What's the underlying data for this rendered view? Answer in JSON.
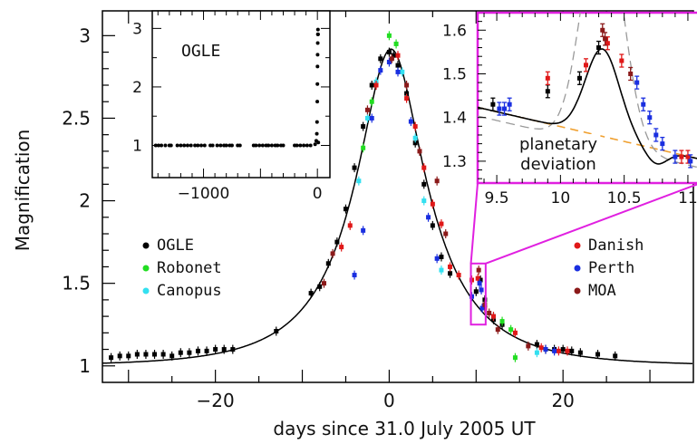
{
  "chart_data": [
    {
      "id": "main",
      "type": "scatter",
      "xlabel": "days since 31.0 July 2005 UT",
      "ylabel": "Magnification",
      "xlim": [
        -33,
        35
      ],
      "ylim": [
        0.9,
        3.15
      ],
      "xticks": [
        -20,
        0,
        20
      ],
      "xtick_labels": [
        "−20",
        "0",
        "20"
      ],
      "yticks": [
        1,
        1.5,
        2,
        2.5,
        3
      ],
      "ytick_labels": [
        "1",
        "1.5",
        "2",
        "2.5",
        "3"
      ],
      "legend_left": [
        {
          "name": "OGLE",
          "color": "#000000"
        },
        {
          "name": "Robonet",
          "color": "#22dd22"
        },
        {
          "name": "Canopus",
          "color": "#33e0f0"
        }
      ],
      "legend_right": [
        {
          "name": "Danish",
          "color": "#e01818"
        },
        {
          "name": "Perth",
          "color": "#1a2fe0"
        },
        {
          "name": "MOA",
          "color": "#8b1a1a"
        }
      ],
      "model": {
        "t0": 0.2,
        "u0": 0.359,
        "tE": 11.0,
        "color": "#000000"
      },
      "zoom_box": {
        "x": [
          9.4,
          11.1
        ],
        "y": [
          1.25,
          1.62
        ],
        "color": "#e020e0"
      },
      "series": [
        {
          "name": "OGLE",
          "color": "#000000",
          "points": [
            [
              -32,
              1.05
            ],
            [
              -31,
              1.06
            ],
            [
              -30,
              1.06
            ],
            [
              -29,
              1.07
            ],
            [
              -28,
              1.07
            ],
            [
              -27,
              1.07
            ],
            [
              -26,
              1.07
            ],
            [
              -25,
              1.06
            ],
            [
              -24,
              1.08
            ],
            [
              -23,
              1.08
            ],
            [
              -22,
              1.09
            ],
            [
              -21,
              1.09
            ],
            [
              -20,
              1.1
            ],
            [
              -19,
              1.1
            ],
            [
              -18,
              1.1
            ],
            [
              -13,
              1.21
            ],
            [
              -9,
              1.44
            ],
            [
              -8,
              1.48
            ],
            [
              -7,
              1.62
            ],
            [
              -6,
              1.75
            ],
            [
              -5,
              1.95
            ],
            [
              -4,
              2.2
            ],
            [
              -3,
              2.45
            ],
            [
              -2,
              2.7
            ],
            [
              -1,
              2.86
            ],
            [
              0,
              2.9
            ],
            [
              0.5,
              2.88
            ],
            [
              1,
              2.82
            ],
            [
              2,
              2.65
            ],
            [
              3,
              2.35
            ],
            [
              4,
              2.1
            ],
            [
              5,
              1.85
            ],
            [
              6,
              1.66
            ],
            [
              7,
              1.56
            ],
            [
              10,
              1.45
            ],
            [
              10.5,
              1.52
            ],
            [
              11,
              1.4
            ],
            [
              12,
              1.28
            ],
            [
              13,
              1.25
            ],
            [
              17,
              1.13
            ],
            [
              18,
              1.1
            ],
            [
              19,
              1.1
            ],
            [
              20,
              1.1
            ],
            [
              21,
              1.09
            ],
            [
              22,
              1.08
            ],
            [
              24,
              1.07
            ],
            [
              26,
              1.06
            ]
          ]
        },
        {
          "name": "Robonet",
          "color": "#22dd22",
          "points": [
            [
              -3,
              2.32
            ],
            [
              -2,
              2.6
            ],
            [
              0,
              3.0
            ],
            [
              0.8,
              2.95
            ],
            [
              13,
              1.27
            ],
            [
              14,
              1.22
            ],
            [
              14.5,
              1.05
            ]
          ]
        },
        {
          "name": "Canopus",
          "color": "#33e0f0",
          "points": [
            [
              -3.5,
              2.12
            ],
            [
              -2.5,
              2.5
            ],
            [
              -1.5,
              2.72
            ],
            [
              1.5,
              2.78
            ],
            [
              3,
              2.38
            ],
            [
              4,
              2.0
            ],
            [
              6,
              1.58
            ],
            [
              12,
              1.3
            ],
            [
              17,
              1.08
            ]
          ]
        },
        {
          "name": "Danish",
          "color": "#e01818",
          "points": [
            [
              -5.5,
              1.72
            ],
            [
              -4.5,
              1.85
            ],
            [
              -1.5,
              2.7
            ],
            [
              1,
              2.88
            ],
            [
              2,
              2.62
            ],
            [
              3,
              2.45
            ],
            [
              4,
              2.2
            ],
            [
              5,
              1.98
            ],
            [
              6,
              1.86
            ],
            [
              7,
              1.6
            ],
            [
              8,
              1.55
            ],
            [
              9.5,
              1.52
            ],
            [
              10.2,
              1.53
            ],
            [
              11,
              1.35
            ],
            [
              12,
              1.3
            ],
            [
              14.5,
              1.2
            ],
            [
              17.5,
              1.11
            ],
            [
              19.5,
              1.09
            ],
            [
              20.5,
              1.09
            ]
          ]
        },
        {
          "name": "Perth",
          "color": "#1a2fe0",
          "points": [
            [
              -4,
              1.55
            ],
            [
              -3,
              1.82
            ],
            [
              -2,
              2.5
            ],
            [
              -1,
              2.79
            ],
            [
              0,
              2.84
            ],
            [
              1,
              2.78
            ],
            [
              2.5,
              2.48
            ],
            [
              4.5,
              1.9
            ],
            [
              5.5,
              1.65
            ],
            [
              9.5,
              1.42
            ],
            [
              10.4,
              1.5
            ],
            [
              10.6,
              1.46
            ],
            [
              10.7,
              1.35
            ],
            [
              18,
              1.1
            ],
            [
              19,
              1.09
            ]
          ]
        },
        {
          "name": "MOA",
          "color": "#8b1a1a",
          "points": [
            [
              -7.5,
              1.5
            ],
            [
              -6.5,
              1.68
            ],
            [
              -2.5,
              2.55
            ],
            [
              0.3,
              2.86
            ],
            [
              2,
              2.7
            ],
            [
              3.5,
              2.3
            ],
            [
              5.5,
              2.12
            ],
            [
              6.5,
              1.8
            ],
            [
              10.3,
              1.58
            ],
            [
              11,
              1.37
            ],
            [
              11.5,
              1.32
            ],
            [
              12.5,
              1.22
            ],
            [
              16,
              1.12
            ]
          ]
        }
      ]
    },
    {
      "id": "inset_ogle",
      "type": "scatter",
      "title": "OGLE",
      "xlim": [
        -1450,
        110
      ],
      "ylim": [
        0.45,
        3.3
      ],
      "xticks": [
        -1000,
        -500,
        0
      ],
      "xtick_labels": [
        "−1000",
        "",
        "0"
      ],
      "yticks": [
        1,
        2,
        3
      ],
      "ytick_labels": [
        "1",
        "2",
        "3"
      ],
      "color": "#000000",
      "points": [
        [
          -1420,
          1.0
        ],
        [
          -1395,
          1.0
        ],
        [
          -1370,
          1.0
        ],
        [
          -1335,
          1.0
        ],
        [
          -1300,
          1.0
        ],
        [
          -1285,
          1.0
        ],
        [
          -1230,
          1.0
        ],
        [
          -1200,
          1.0
        ],
        [
          -1170,
          1.0
        ],
        [
          -1140,
          1.0
        ],
        [
          -1110,
          1.0
        ],
        [
          -1075,
          1.0
        ],
        [
          -1050,
          1.0
        ],
        [
          -1020,
          1.0
        ],
        [
          -990,
          1.0
        ],
        [
          -940,
          1.0
        ],
        [
          -920,
          1.0
        ],
        [
          -880,
          1.0
        ],
        [
          -850,
          1.0
        ],
        [
          -820,
          1.0
        ],
        [
          -800,
          1.0
        ],
        [
          -770,
          1.0
        ],
        [
          -750,
          1.0
        ],
        [
          -700,
          1.0
        ],
        [
          -680,
          1.0
        ],
        [
          -560,
          1.0
        ],
        [
          -540,
          1.0
        ],
        [
          -510,
          1.0
        ],
        [
          -480,
          1.0
        ],
        [
          -450,
          1.0
        ],
        [
          -430,
          1.0
        ],
        [
          -400,
          1.0
        ],
        [
          -370,
          1.0
        ],
        [
          -350,
          1.0
        ],
        [
          -320,
          1.0
        ],
        [
          -300,
          1.0
        ],
        [
          -200,
          1.0
        ],
        [
          -180,
          1.0
        ],
        [
          -150,
          1.0
        ],
        [
          -120,
          1.0
        ],
        [
          -90,
          1.0
        ],
        [
          -60,
          1.0
        ],
        [
          -20,
          1.02
        ],
        [
          -10,
          1.08
        ],
        [
          -5,
          1.2
        ],
        [
          -3,
          1.4
        ],
        [
          -1,
          1.75
        ],
        [
          0,
          2.05
        ],
        [
          1,
          2.35
        ],
        [
          2,
          2.55
        ],
        [
          3,
          2.75
        ],
        [
          4,
          2.9
        ],
        [
          5,
          2.98
        ],
        [
          6,
          2.9
        ],
        [
          8,
          1.05
        ]
      ]
    },
    {
      "id": "inset_deviation",
      "type": "scatter",
      "title": "planetary deviation",
      "xlim": [
        9.35,
        11.1
      ],
      "ylim": [
        1.25,
        1.64
      ],
      "xticks": [
        9.5,
        10,
        10.5,
        11
      ],
      "xtick_labels": [
        "9.5",
        "10",
        "10.5",
        "11"
      ],
      "yticks": [
        1.3,
        1.4,
        1.5,
        1.6
      ],
      "ytick_labels": [
        "1.3",
        "1.4",
        "1.5",
        "1.6"
      ],
      "model_color": "#000000",
      "background_color": "#f0a030",
      "single_planet_color": "#999999",
      "series": [
        {
          "name": "OGLE",
          "color": "#000000",
          "points": [
            [
              9.47,
              1.43
            ],
            [
              9.9,
              1.46
            ],
            [
              10.15,
              1.49
            ],
            [
              10.3,
              1.56
            ]
          ]
        },
        {
          "name": "Danish",
          "color": "#e01818",
          "points": [
            [
              9.9,
              1.49
            ],
            [
              10.2,
              1.52
            ],
            [
              10.37,
              1.57
            ],
            [
              10.48,
              1.53
            ],
            [
              10.95,
              1.31
            ],
            [
              11.0,
              1.31
            ]
          ]
        },
        {
          "name": "Perth",
          "color": "#1a2fe0",
          "points": [
            [
              9.52,
              1.42
            ],
            [
              9.56,
              1.42
            ],
            [
              9.6,
              1.43
            ],
            [
              10.6,
              1.48
            ],
            [
              10.65,
              1.43
            ],
            [
              10.7,
              1.4
            ],
            [
              10.75,
              1.36
            ],
            [
              10.8,
              1.34
            ],
            [
              10.9,
              1.31
            ],
            [
              11.02,
              1.3
            ]
          ]
        },
        {
          "name": "MOA",
          "color": "#8b1a1a",
          "points": [
            [
              10.33,
              1.6
            ],
            [
              10.35,
              1.58
            ],
            [
              10.55,
              1.5
            ]
          ]
        }
      ]
    }
  ]
}
